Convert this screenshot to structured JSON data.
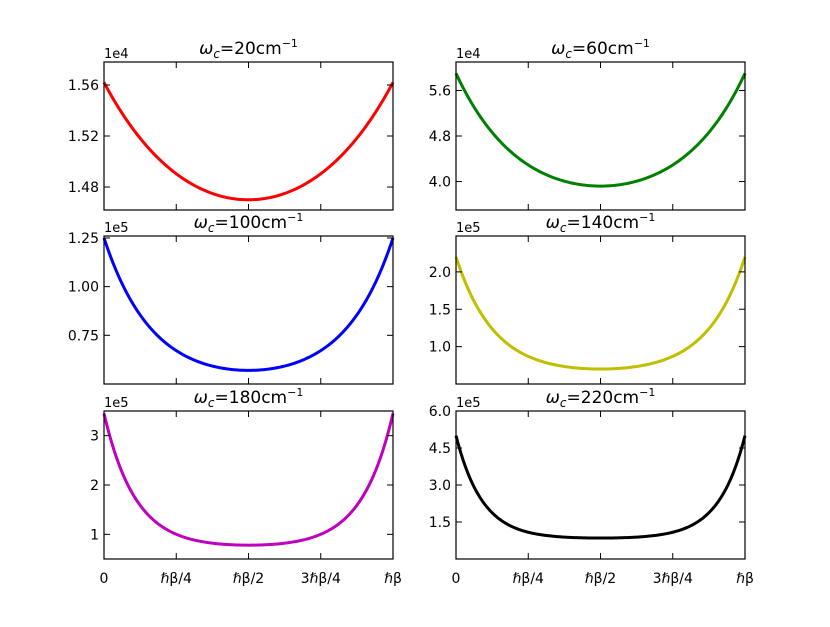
{
  "chart_data": [
    {
      "type": "line",
      "title_prefix": "ω",
      "title_sub": "c",
      "title_value": "=20cm",
      "title_sup": "−1",
      "color": "#ff0000",
      "multiplier": "1e4",
      "ylim": [
        1.462,
        1.578
      ],
      "yticks": [
        1.48,
        1.52,
        1.56
      ],
      "ytick_labels": [
        "1.48",
        "1.52",
        "1.56"
      ],
      "y_end": 1.562,
      "y_min": 1.47,
      "steepness": 1.4,
      "xticks": [
        0,
        0.25,
        0.5,
        0.75,
        1
      ],
      "xtick_labels": []
    },
    {
      "type": "line",
      "title_prefix": "ω",
      "title_sub": "c",
      "title_value": "=60cm",
      "title_sup": "−1",
      "color": "#008000",
      "multiplier": "1e4",
      "ylim": [
        3.5,
        6.1
      ],
      "yticks": [
        4.0,
        4.8,
        5.6
      ],
      "ytick_labels": [
        "4.0",
        "4.8",
        "5.6"
      ],
      "y_end": 5.9,
      "y_min": 3.92,
      "steepness": 2.2,
      "xticks": [
        0,
        0.25,
        0.5,
        0.75,
        1
      ],
      "xtick_labels": []
    },
    {
      "type": "line",
      "title_prefix": "ω",
      "title_sub": "c",
      "title_value": "=100cm",
      "title_sup": "−1",
      "color": "#0000ff",
      "multiplier": "1e5",
      "ylim": [
        0.5,
        1.26
      ],
      "yticks": [
        0.75,
        1.0,
        1.25
      ],
      "ytick_labels": [
        "0.75",
        "1.00",
        "1.25"
      ],
      "y_end": 1.25,
      "y_min": 0.57,
      "steepness": 3.0,
      "xticks": [
        0,
        0.25,
        0.5,
        0.75,
        1
      ],
      "xtick_labels": []
    },
    {
      "type": "line",
      "title_prefix": "ω",
      "title_sub": "c",
      "title_value": "=140cm",
      "title_sup": "−1",
      "color": "#bfbf00",
      "multiplier": "1e5",
      "ylim": [
        0.5,
        2.48
      ],
      "yticks": [
        1.0,
        1.5,
        2.0
      ],
      "ytick_labels": [
        "1.0",
        "1.5",
        "2.0"
      ],
      "y_end": 2.2,
      "y_min": 0.7,
      "steepness": 3.8,
      "xticks": [
        0,
        0.25,
        0.5,
        0.75,
        1
      ],
      "xtick_labels": []
    },
    {
      "type": "line",
      "title_prefix": "ω",
      "title_sub": "c",
      "title_value": "=180cm",
      "title_sup": "−1",
      "color": "#bf00bf",
      "multiplier": "1e5",
      "ylim": [
        0.5,
        3.5
      ],
      "yticks": [
        1,
        2,
        3
      ],
      "ytick_labels": [
        "1",
        "2",
        "3"
      ],
      "y_end": 3.45,
      "y_min": 0.78,
      "steepness": 4.6,
      "xticks": [
        0,
        0.25,
        0.5,
        0.75,
        1
      ],
      "xtick_labels": [
        "0",
        "ℏβ/4",
        "ℏβ/2",
        "3ℏβ/4",
        "ℏβ"
      ]
    },
    {
      "type": "line",
      "title_prefix": "ω",
      "title_sub": "c",
      "title_value": "=220cm",
      "title_sup": "−1",
      "color": "#000000",
      "multiplier": "1e5",
      "ylim": [
        0.0,
        6.0
      ],
      "yticks": [
        1.5,
        3.0,
        4.5,
        6.0
      ],
      "ytick_labels": [
        "1.5",
        "3.0",
        "4.5",
        "6.0"
      ],
      "y_end": 5.0,
      "y_min": 0.85,
      "steepness": 5.5,
      "xticks": [
        0,
        0.25,
        0.5,
        0.75,
        1
      ],
      "xtick_labels": [
        "0",
        "ℏβ/4",
        "ℏβ/2",
        "3ℏβ/4",
        "ℏβ"
      ]
    }
  ]
}
